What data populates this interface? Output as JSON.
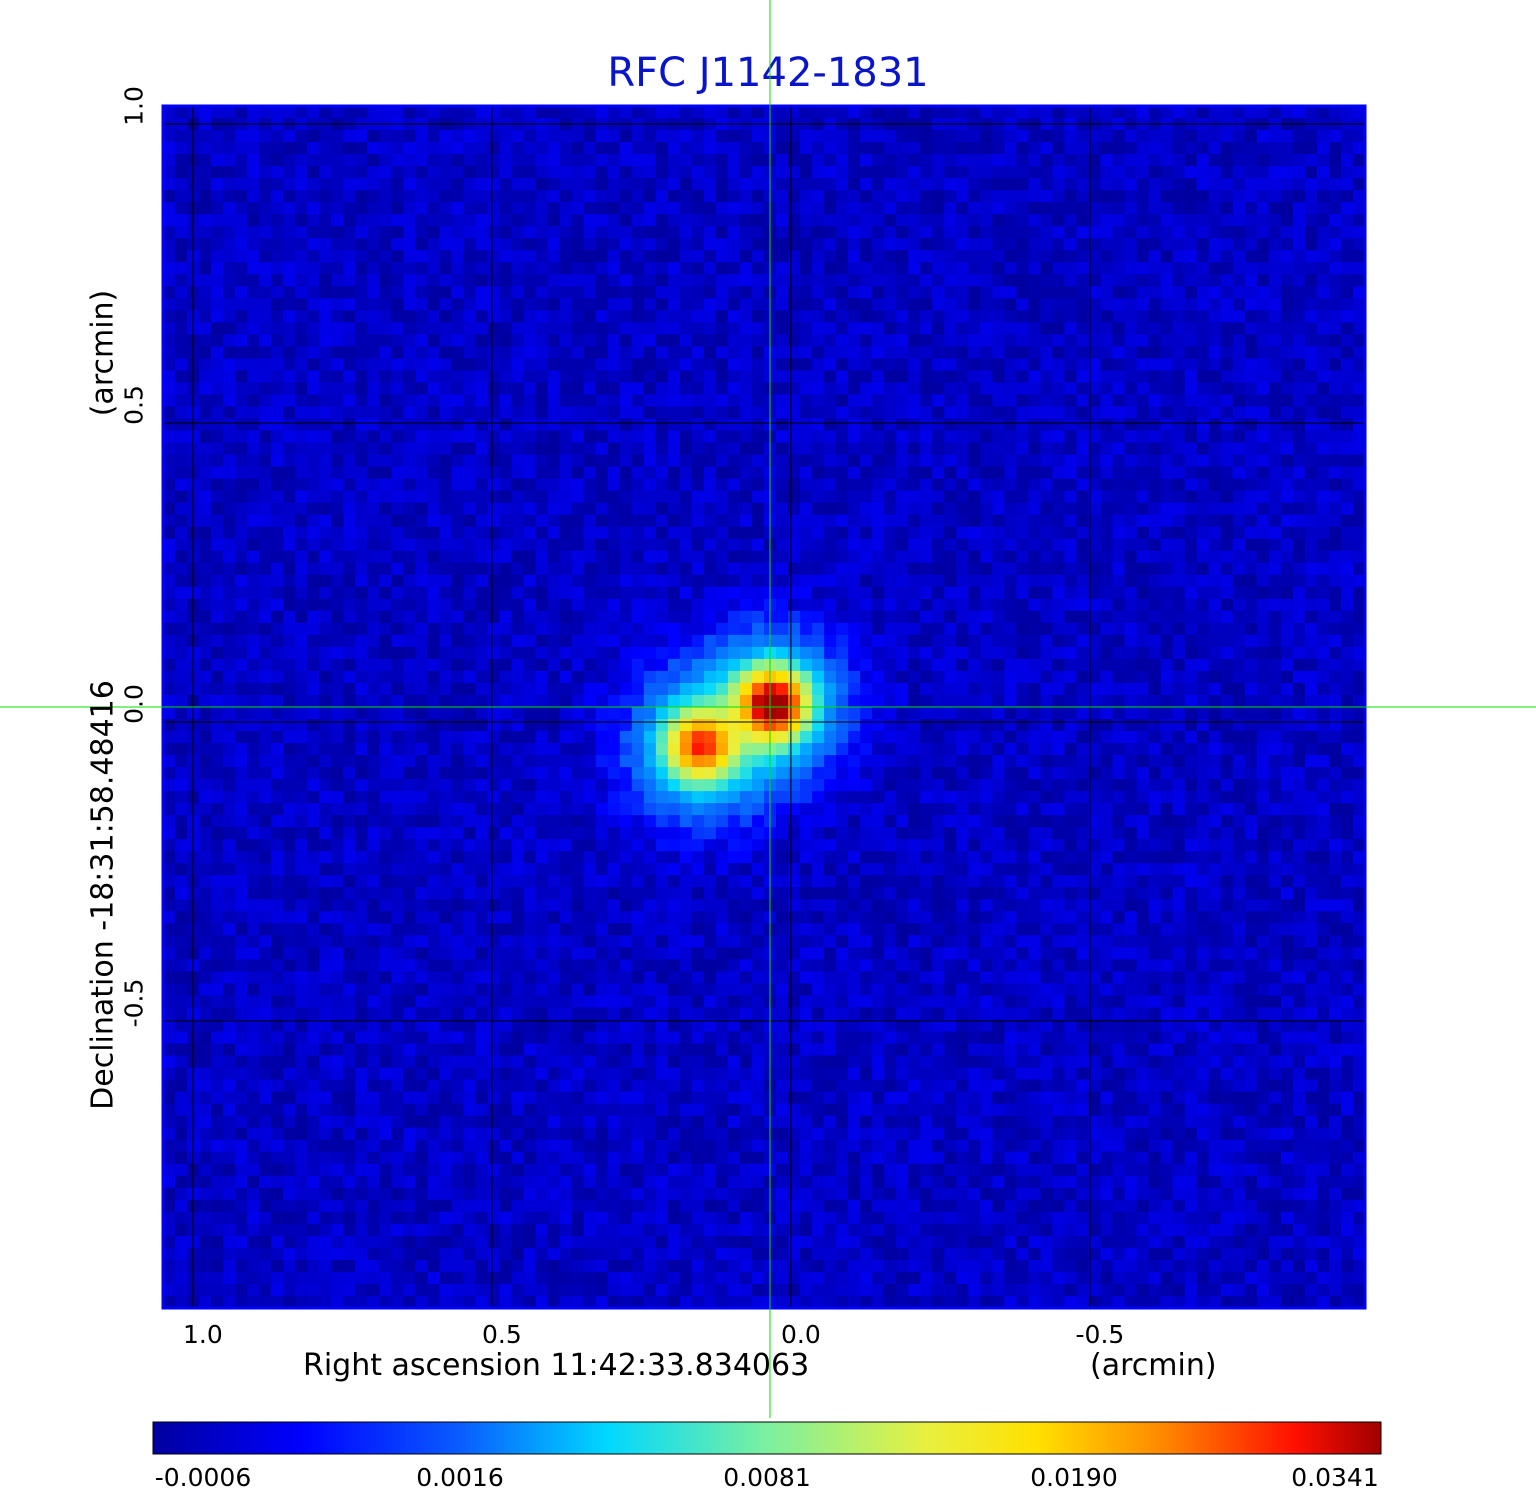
{
  "chart_data": {
    "type": "heatmap",
    "title": "RFC J1142-1831",
    "xlabel": "Right ascension  11:42:33.834063",
    "xunit": "(arcmin)",
    "ylabel": "Declination  -18:31:58.48416",
    "yunit": "(arcmin)",
    "x_ticks": [
      "1.0",
      "0.5",
      "0.0",
      "-0.5"
    ],
    "x_tick_values": [
      1.0,
      0.5,
      0.0,
      -0.5
    ],
    "y_ticks": [
      "1.0",
      "0.5",
      "0.0",
      "-0.5"
    ],
    "y_tick_values": [
      1.0,
      0.5,
      0.0,
      -0.5
    ],
    "xlim": [
      1.05,
      -0.96
    ],
    "ylim": [
      -0.98,
      1.03
    ],
    "grid": true,
    "crosshair": {
      "x": 0.035,
      "y": 0.025,
      "color": "#00e000"
    },
    "colormap": "jet",
    "colorbar": {
      "position": "bottom",
      "ticks": [
        "-0.0006",
        "0.0016",
        "0.0081",
        "0.0190",
        "0.0341"
      ],
      "tick_values": [
        -0.0006,
        0.0016,
        0.0081,
        0.019,
        0.0341
      ]
    },
    "sources": [
      {
        "x": 0.03,
        "y": 0.03,
        "peak": 0.0341
      },
      {
        "x": 0.15,
        "y": -0.04,
        "peak": 0.024
      }
    ],
    "background_level": -0.0002
  }
}
